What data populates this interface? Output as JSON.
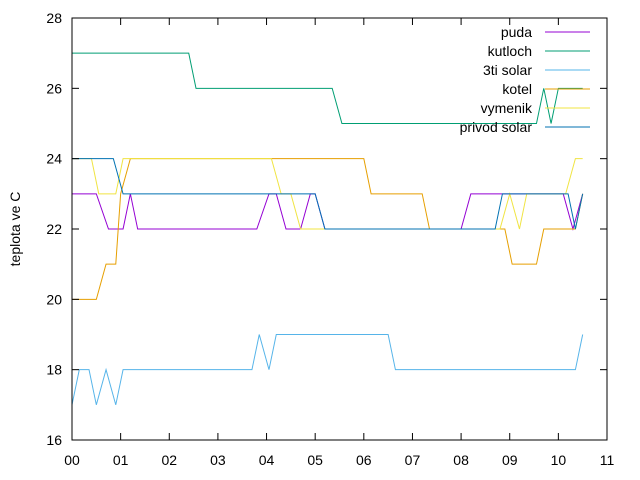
{
  "chart_data": {
    "type": "line",
    "title": "",
    "xlabel": "",
    "ylabel": "teplota ve C",
    "xlim": [
      0,
      11
    ],
    "ylim": [
      16,
      28
    ],
    "x_ticks": [
      "00",
      "01",
      "02",
      "03",
      "04",
      "05",
      "06",
      "07",
      "08",
      "09",
      "10",
      "11"
    ],
    "y_ticks": [
      16,
      18,
      20,
      22,
      24,
      26,
      28
    ],
    "grid": false,
    "legend_position": "top-right",
    "series": [
      {
        "name": "puda",
        "color": "#9400d3",
        "points": [
          [
            0,
            23
          ],
          [
            0.5,
            23
          ],
          [
            0.75,
            22
          ],
          [
            0.9,
            22
          ],
          [
            1.05,
            22
          ],
          [
            1.2,
            23
          ],
          [
            1.35,
            22
          ],
          [
            3.8,
            22
          ],
          [
            4.05,
            23
          ],
          [
            4.2,
            23
          ],
          [
            4.4,
            22
          ],
          [
            4.7,
            22
          ],
          [
            4.9,
            23
          ],
          [
            5.0,
            23
          ],
          [
            5.2,
            22
          ],
          [
            8.0,
            22
          ],
          [
            8.2,
            23
          ],
          [
            9.3,
            23
          ],
          [
            9.9,
            23
          ],
          [
            10.1,
            23
          ],
          [
            10.3,
            22
          ],
          [
            10.5,
            23
          ]
        ]
      },
      {
        "name": "kutloch",
        "color": "#009e73",
        "points": [
          [
            0,
            27
          ],
          [
            2.4,
            27
          ],
          [
            2.55,
            26
          ],
          [
            5.35,
            26
          ],
          [
            5.55,
            25
          ],
          [
            9.55,
            25
          ],
          [
            9.7,
            26
          ],
          [
            9.85,
            25
          ],
          [
            10.0,
            26
          ],
          [
            10.5,
            26
          ]
        ]
      },
      {
        "name": "3ti solar",
        "color": "#56b4e9",
        "points": [
          [
            0,
            17
          ],
          [
            0.15,
            18
          ],
          [
            0.35,
            18
          ],
          [
            0.5,
            17
          ],
          [
            0.7,
            18
          ],
          [
            0.9,
            17
          ],
          [
            1.05,
            18
          ],
          [
            3.7,
            18
          ],
          [
            3.85,
            19
          ],
          [
            4.05,
            18
          ],
          [
            4.2,
            19
          ],
          [
            6.5,
            19
          ],
          [
            6.65,
            18
          ],
          [
            10.35,
            18
          ],
          [
            10.5,
            19
          ]
        ]
      },
      {
        "name": "kotel",
        "color": "#e69f00",
        "points": [
          [
            0,
            20
          ],
          [
            0.5,
            20
          ],
          [
            0.7,
            21
          ],
          [
            0.9,
            21
          ],
          [
            1.0,
            23
          ],
          [
            1.2,
            24
          ],
          [
            6.0,
            24
          ],
          [
            6.15,
            23
          ],
          [
            7.2,
            23
          ],
          [
            7.35,
            22
          ],
          [
            8.7,
            22
          ],
          [
            8.9,
            22
          ],
          [
            9.05,
            21
          ],
          [
            9.55,
            21
          ],
          [
            9.7,
            22
          ],
          [
            10.35,
            22
          ],
          [
            10.5,
            23
          ]
        ]
      },
      {
        "name": "vymenik",
        "color": "#f0e442",
        "points": [
          [
            0,
            24
          ],
          [
            0.4,
            24
          ],
          [
            0.55,
            23
          ],
          [
            0.9,
            23
          ],
          [
            1.05,
            24
          ],
          [
            4.1,
            24
          ],
          [
            4.3,
            23
          ],
          [
            4.5,
            23
          ],
          [
            4.7,
            22
          ],
          [
            5.2,
            22
          ],
          [
            8.0,
            22
          ],
          [
            8.8,
            22
          ],
          [
            9.0,
            23
          ],
          [
            9.2,
            22
          ],
          [
            9.35,
            23
          ],
          [
            10.0,
            23
          ],
          [
            10.15,
            23
          ],
          [
            10.35,
            24
          ],
          [
            10.5,
            24
          ]
        ]
      },
      {
        "name": "privod solar",
        "color": "#0072b2",
        "points": [
          [
            0,
            24
          ],
          [
            0.85,
            24
          ],
          [
            1.05,
            23
          ],
          [
            5.0,
            23
          ],
          [
            5.2,
            22
          ],
          [
            8.7,
            22
          ],
          [
            8.85,
            23
          ],
          [
            10.2,
            23
          ],
          [
            10.35,
            22
          ],
          [
            10.5,
            23
          ]
        ]
      }
    ]
  }
}
